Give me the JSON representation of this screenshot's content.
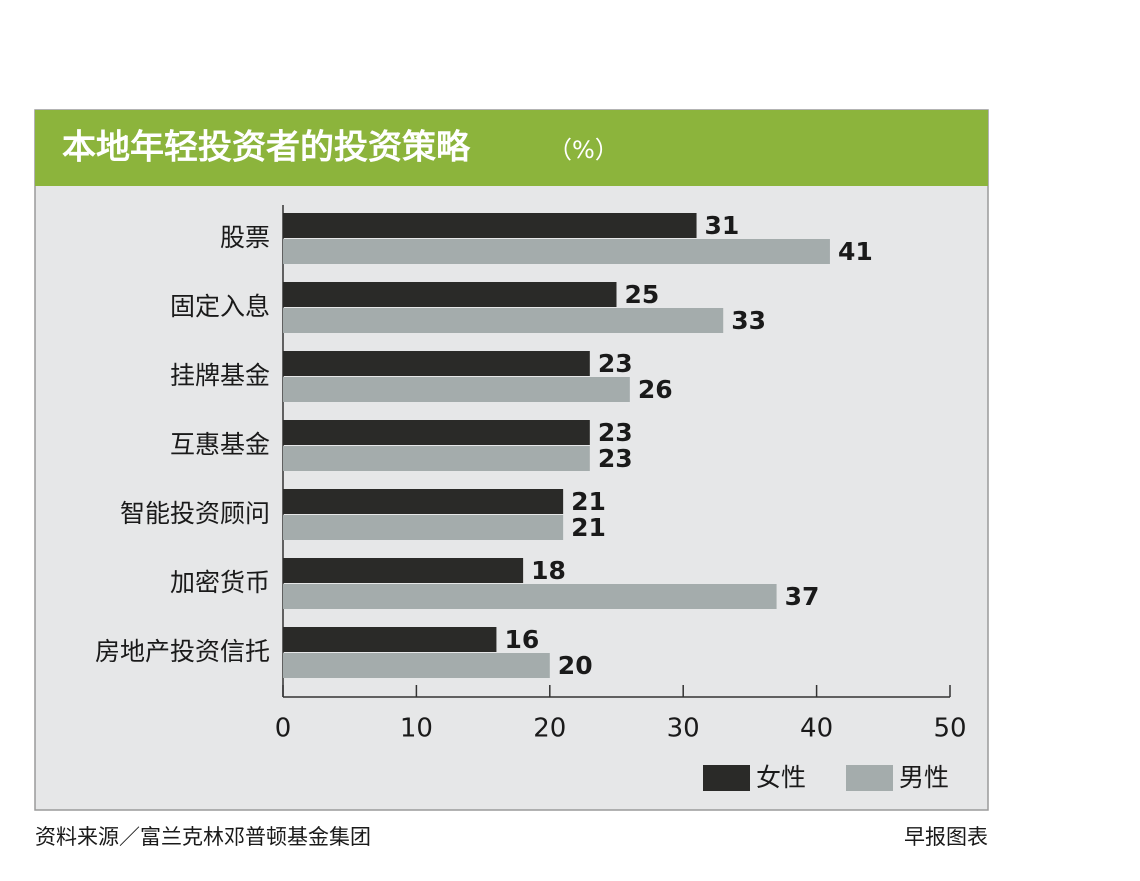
{
  "chart_data": {
    "type": "bar",
    "orientation": "horizontal",
    "title": "本地年轻投资者的投资策略",
    "title_unit": "（%）",
    "categories": [
      "股票",
      "固定入息",
      "挂牌基金",
      "互惠基金",
      "智能投资顾问",
      "加密货币",
      "房地产投资信托"
    ],
    "series": [
      {
        "name": "女性",
        "color": "#2a2a28",
        "values": [
          31,
          25,
          23,
          23,
          21,
          18,
          16
        ]
      },
      {
        "name": "男性",
        "color": "#a4acac",
        "values": [
          41,
          33,
          26,
          23,
          21,
          37,
          20
        ]
      }
    ],
    "xlim": [
      0,
      50
    ],
    "xticks": [
      0,
      10,
      20,
      30,
      40,
      50
    ],
    "source": "资料来源／富兰克林邓普顿基金集团",
    "credit": "早报图表"
  }
}
